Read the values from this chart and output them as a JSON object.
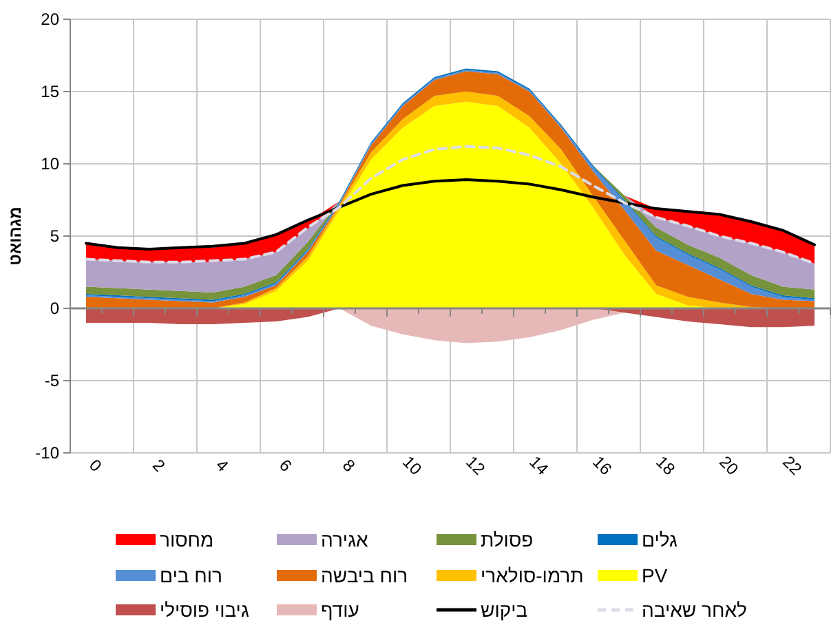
{
  "chart_data": [
    {
      "type": "area",
      "stacked": true,
      "ylabel": "מגהואט",
      "categories": [
        "0",
        null,
        "2",
        null,
        "4",
        null,
        "6",
        null,
        "8",
        null,
        "10",
        null,
        "12",
        null,
        "14",
        null,
        "16",
        null,
        "18",
        null,
        "20",
        null,
        "22",
        null
      ],
      "ylim": [
        -10,
        20
      ],
      "yticks": [
        -10,
        -5,
        0,
        5,
        10,
        15,
        20
      ],
      "grid": true,
      "legend": "bottom",
      "series": [
        {
          "name": "PV",
          "color": "#ffff00",
          "values": [
            0,
            0,
            0,
            0,
            0,
            0.3,
            1.2,
            3.3,
            6.8,
            10.3,
            12.5,
            14.0,
            14.3,
            14.0,
            12.5,
            10.0,
            7.0,
            3.7,
            1.0,
            0.2,
            0,
            0,
            0,
            0
          ]
        },
        {
          "name": "תרמו-סולארי",
          "color": "#ffc000",
          "values": [
            0,
            0,
            0,
            0,
            0,
            0.1,
            0.2,
            0.3,
            0.3,
            0.5,
            0.6,
            0.7,
            0.7,
            0.7,
            0.8,
            1.0,
            0.8,
            1.0,
            0.6,
            0.6,
            0.4,
            0.1,
            0,
            0
          ]
        },
        {
          "name": "רוח ביבשה",
          "color": "#e36c09",
          "values": [
            0.8,
            0.7,
            0.6,
            0.5,
            0.4,
            0.4,
            0.2,
            0.3,
            0.1,
            0.5,
            0.9,
            1.1,
            1.4,
            1.5,
            1.7,
            1.5,
            1.7,
            2.1,
            2.4,
            2.2,
            1.6,
            0.9,
            0.6,
            0.5
          ]
        },
        {
          "name": "רוח בים",
          "color": "#558ed5",
          "values": [
            0.1,
            0.1,
            0.1,
            0.1,
            0.1,
            0.1,
            0.1,
            0.1,
            0.1,
            0.1,
            0.1,
            0.1,
            0.1,
            0.1,
            0.1,
            0.1,
            0.3,
            0.6,
            0.9,
            0.7,
            0.7,
            0.5,
            0.2,
            0.1
          ]
        },
        {
          "name": "גלים",
          "color": "#0070c0",
          "values": [
            0.1,
            0.1,
            0.1,
            0.1,
            0.1,
            0.1,
            0.1,
            0.1,
            0.1,
            0.1,
            0.1,
            0.1,
            0.1,
            0.1,
            0.1,
            0.1,
            0.1,
            0.1,
            0.1,
            0.1,
            0.1,
            0.1,
            0.1,
            0.1
          ]
        },
        {
          "name": "פסולת",
          "color": "#77933c",
          "values": [
            0.5,
            0.5,
            0.5,
            0.5,
            0.5,
            0.5,
            0.5,
            0.5,
            0,
            0,
            0,
            0,
            0,
            0,
            0,
            0,
            0,
            0.3,
            0.6,
            0.6,
            0.7,
            0.7,
            0.6,
            0.6
          ]
        },
        {
          "name": "אגירה",
          "color": "#b3a2c7",
          "values": [
            1.9,
            1.9,
            1.9,
            2.0,
            2.1,
            1.9,
            1.6,
            0.9,
            0,
            0,
            0,
            0,
            0,
            0,
            0,
            0,
            0,
            0,
            0.7,
            1.3,
            1.5,
            2.2,
            2.4,
            1.8
          ]
        },
        {
          "name": "מחסור",
          "color": "#ff0000",
          "values": [
            1.1,
            0.9,
            0.9,
            1.0,
            1.0,
            1.1,
            1.2,
            0.5,
            0,
            0,
            0,
            0,
            0,
            0,
            0,
            0,
            0,
            0,
            0.6,
            1.0,
            1.5,
            1.5,
            1.5,
            1.3
          ]
        },
        {
          "name": "ביקוש",
          "type": "line",
          "color": "#000000",
          "line_style": "solid",
          "values": [
            4.5,
            4.2,
            4.1,
            4.2,
            4.3,
            4.5,
            5.1,
            6.1,
            7.0,
            7.9,
            8.5,
            8.8,
            8.9,
            8.8,
            8.6,
            8.2,
            7.7,
            7.3,
            6.9,
            6.7,
            6.5,
            6.0,
            5.4,
            4.4
          ]
        },
        {
          "name": "לאחר שאיבה",
          "type": "line",
          "color": "#dcdce8",
          "line_style": "dashed",
          "values": [
            3.4,
            3.3,
            3.2,
            3.2,
            3.3,
            3.4,
            3.9,
            5.6,
            7.0,
            9.0,
            10.3,
            11.0,
            11.2,
            11.1,
            10.6,
            9.8,
            8.5,
            7.3,
            6.3,
            5.7,
            5.0,
            4.5,
            3.9,
            3.1
          ]
        }
      ]
    },
    {
      "type": "area",
      "stacked": true,
      "categories": [
        "0",
        null,
        "2",
        null,
        "4",
        null,
        "6",
        null,
        "8",
        null,
        "10",
        null,
        "12",
        null,
        "14",
        null,
        "16",
        null,
        "18",
        null,
        "20",
        null,
        "22",
        null
      ],
      "ylim": [
        -10,
        20
      ],
      "tick_labels": false,
      "legend": "bottom",
      "series": [
        {
          "name": "גיבוי פוסילי",
          "color": "#c0504d",
          "values": [
            -1.0,
            -1.0,
            -1.0,
            -1.1,
            -1.1,
            -1.0,
            -0.9,
            -0.6,
            0,
            0,
            0,
            0,
            0,
            0,
            0,
            0,
            0,
            -0.3,
            -0.6,
            -0.9,
            -1.1,
            -1.3,
            -1.3,
            -1.2
          ]
        },
        {
          "name": "עודף",
          "color": "#e6b9b8",
          "values": [
            0,
            0,
            0,
            0,
            0,
            0,
            0,
            0,
            0,
            -1.2,
            -1.8,
            -2.2,
            -2.4,
            -2.3,
            -2.0,
            -1.5,
            -0.8,
            0,
            0,
            0,
            0,
            0,
            0,
            0
          ]
        }
      ]
    }
  ]
}
